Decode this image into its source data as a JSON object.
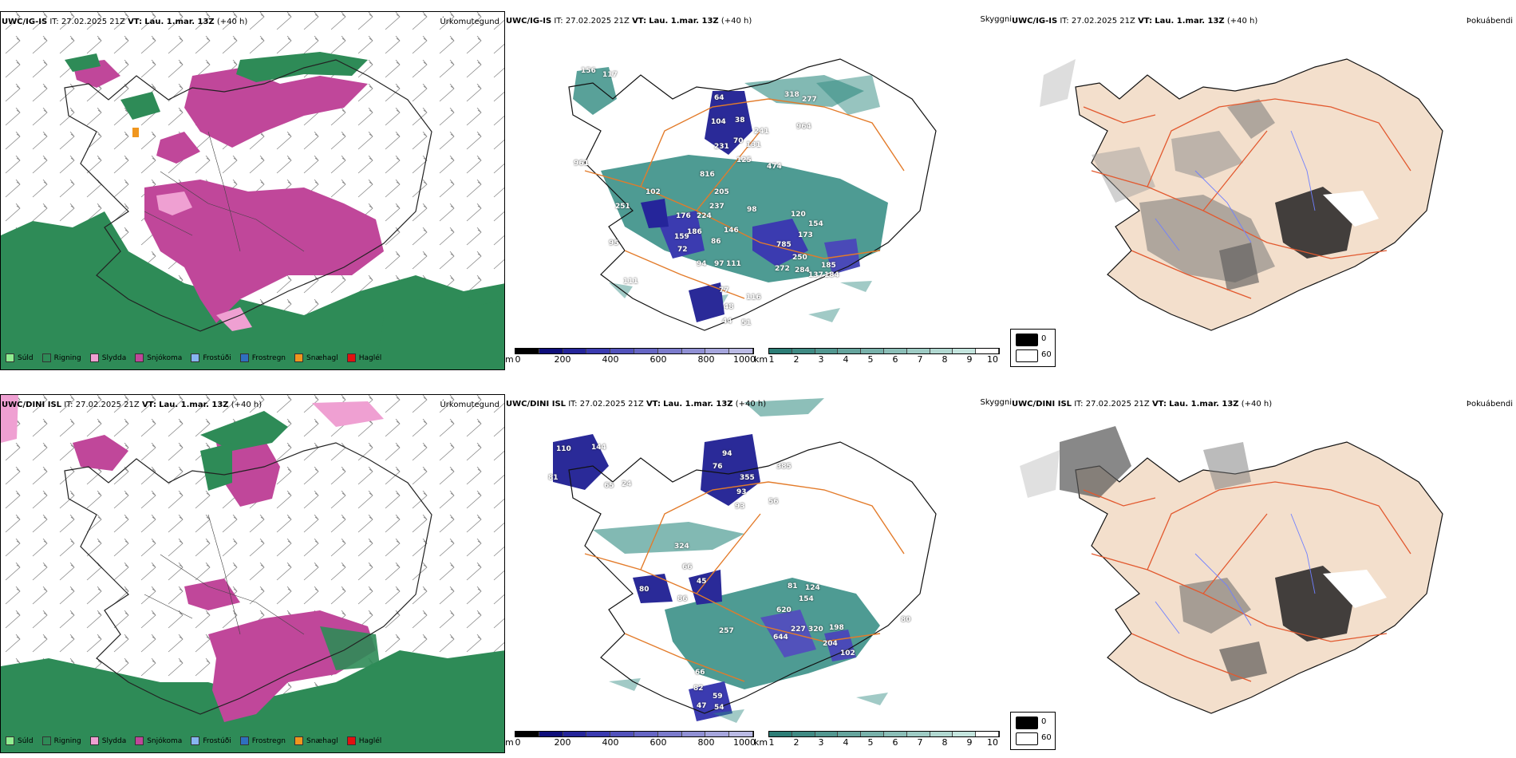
{
  "colors": {
    "rain_green": "#2e8b57",
    "snow_magenta": "#c0479a",
    "sleet_pink": "#efa0d2",
    "drizzle_green": "#90ee90",
    "freezing_drizzle_blue": "#87b5f0",
    "freezing_rain_blue": "#2f6fbf",
    "snow_pellets_orange": "#f0961e",
    "hail_red": "#e31010",
    "road_orange": "#e37b2a",
    "cloud_teal": "#2f8a80",
    "cloud_blue": "#2a2a98",
    "land_tan": "#f3dfcc",
    "river_blue": "#6f7fff"
  },
  "rows": [
    {
      "model": "UWC/IG-IS",
      "it_label": "IT:",
      "it_value": "27.02.2025 21Z",
      "vt_label": "VT:",
      "vt_value": "Lau. 1.mar. 13Z",
      "lead": "(+40 h)",
      "precip_title": "Úrkomutegund",
      "visibility_title": "Skyggni",
      "fog_title": "Þokuábendi",
      "ceiling_labels": [
        "156",
        "117",
        "64",
        "318",
        "277",
        "104",
        "38",
        "241",
        "964",
        "231",
        "70",
        "131",
        "125",
        "474",
        "961",
        "816",
        "205",
        "237",
        "98",
        "120",
        "154",
        "176",
        "224",
        "146",
        "159",
        "186",
        "86",
        "173",
        "72",
        "94",
        "97",
        "111",
        "785",
        "250",
        "185",
        "77",
        "272",
        "284",
        "184",
        "48",
        "116",
        "44",
        "51",
        "137",
        "102",
        "251",
        "95",
        "111"
      ]
    },
    {
      "model": "UWC/DINI ISL",
      "it_label": "IT:",
      "it_value": "27.02.2025 21Z",
      "vt_label": "VT:",
      "vt_value": "Lau. 1.mar. 13Z",
      "lead": "(+40 h)",
      "precip_title": "Úrkomutegund",
      "visibility_title": "Skyggni",
      "fog_title": "Þokuábendi",
      "ceiling_labels": [
        "110",
        "144",
        "81",
        "65",
        "24",
        "94",
        "76",
        "385",
        "355",
        "93",
        "93",
        "56",
        "324",
        "45",
        "66",
        "80",
        "86",
        "81",
        "124",
        "154",
        "620",
        "198",
        "227",
        "320",
        "644",
        "204",
        "102",
        "257",
        "66",
        "82",
        "59",
        "47",
        "54",
        "80"
      ]
    }
  ],
  "precip_legend": [
    {
      "label": "Súld",
      "color": "#90ee90"
    },
    {
      "label": "Rigning",
      "color": "#2e8b57"
    },
    {
      "label": "Slydda",
      "color": "#efa0d2"
    },
    {
      "label": "Snjókoma",
      "color": "#c0479a"
    },
    {
      "label": "Frostúði",
      "color": "#87b5f0"
    },
    {
      "label": "Frostregn",
      "color": "#2f6fbf"
    },
    {
      "label": "Snæhagl",
      "color": "#f0961e"
    },
    {
      "label": "Haglél",
      "color": "#e31010"
    }
  ],
  "ceiling_bar": {
    "unit": "m",
    "ticks": [
      "0",
      "200",
      "400",
      "600",
      "800",
      "1000"
    ],
    "colors": [
      "#000000",
      "#0e0e7a",
      "#25259a",
      "#3b3bb0",
      "#5252bb",
      "#6666c4",
      "#7b7bcc",
      "#9090d4",
      "#a5a5dc",
      "#babae4"
    ]
  },
  "visibility_bar": {
    "unit": "km",
    "ticks": [
      "1",
      "2",
      "3",
      "4",
      "5",
      "6",
      "7",
      "8",
      "9",
      "10"
    ],
    "colors": [
      "#2c7d76",
      "#3f8a83",
      "#529790",
      "#65a49d",
      "#78b1aa",
      "#8bbeb7",
      "#9ecbc4",
      "#b1d8d1",
      "#c4e5de",
      "#ffffff"
    ]
  },
  "fog_legend": [
    {
      "label": "0",
      "color": "#000000"
    },
    {
      "label": "60",
      "color": "#ffffff"
    }
  ]
}
